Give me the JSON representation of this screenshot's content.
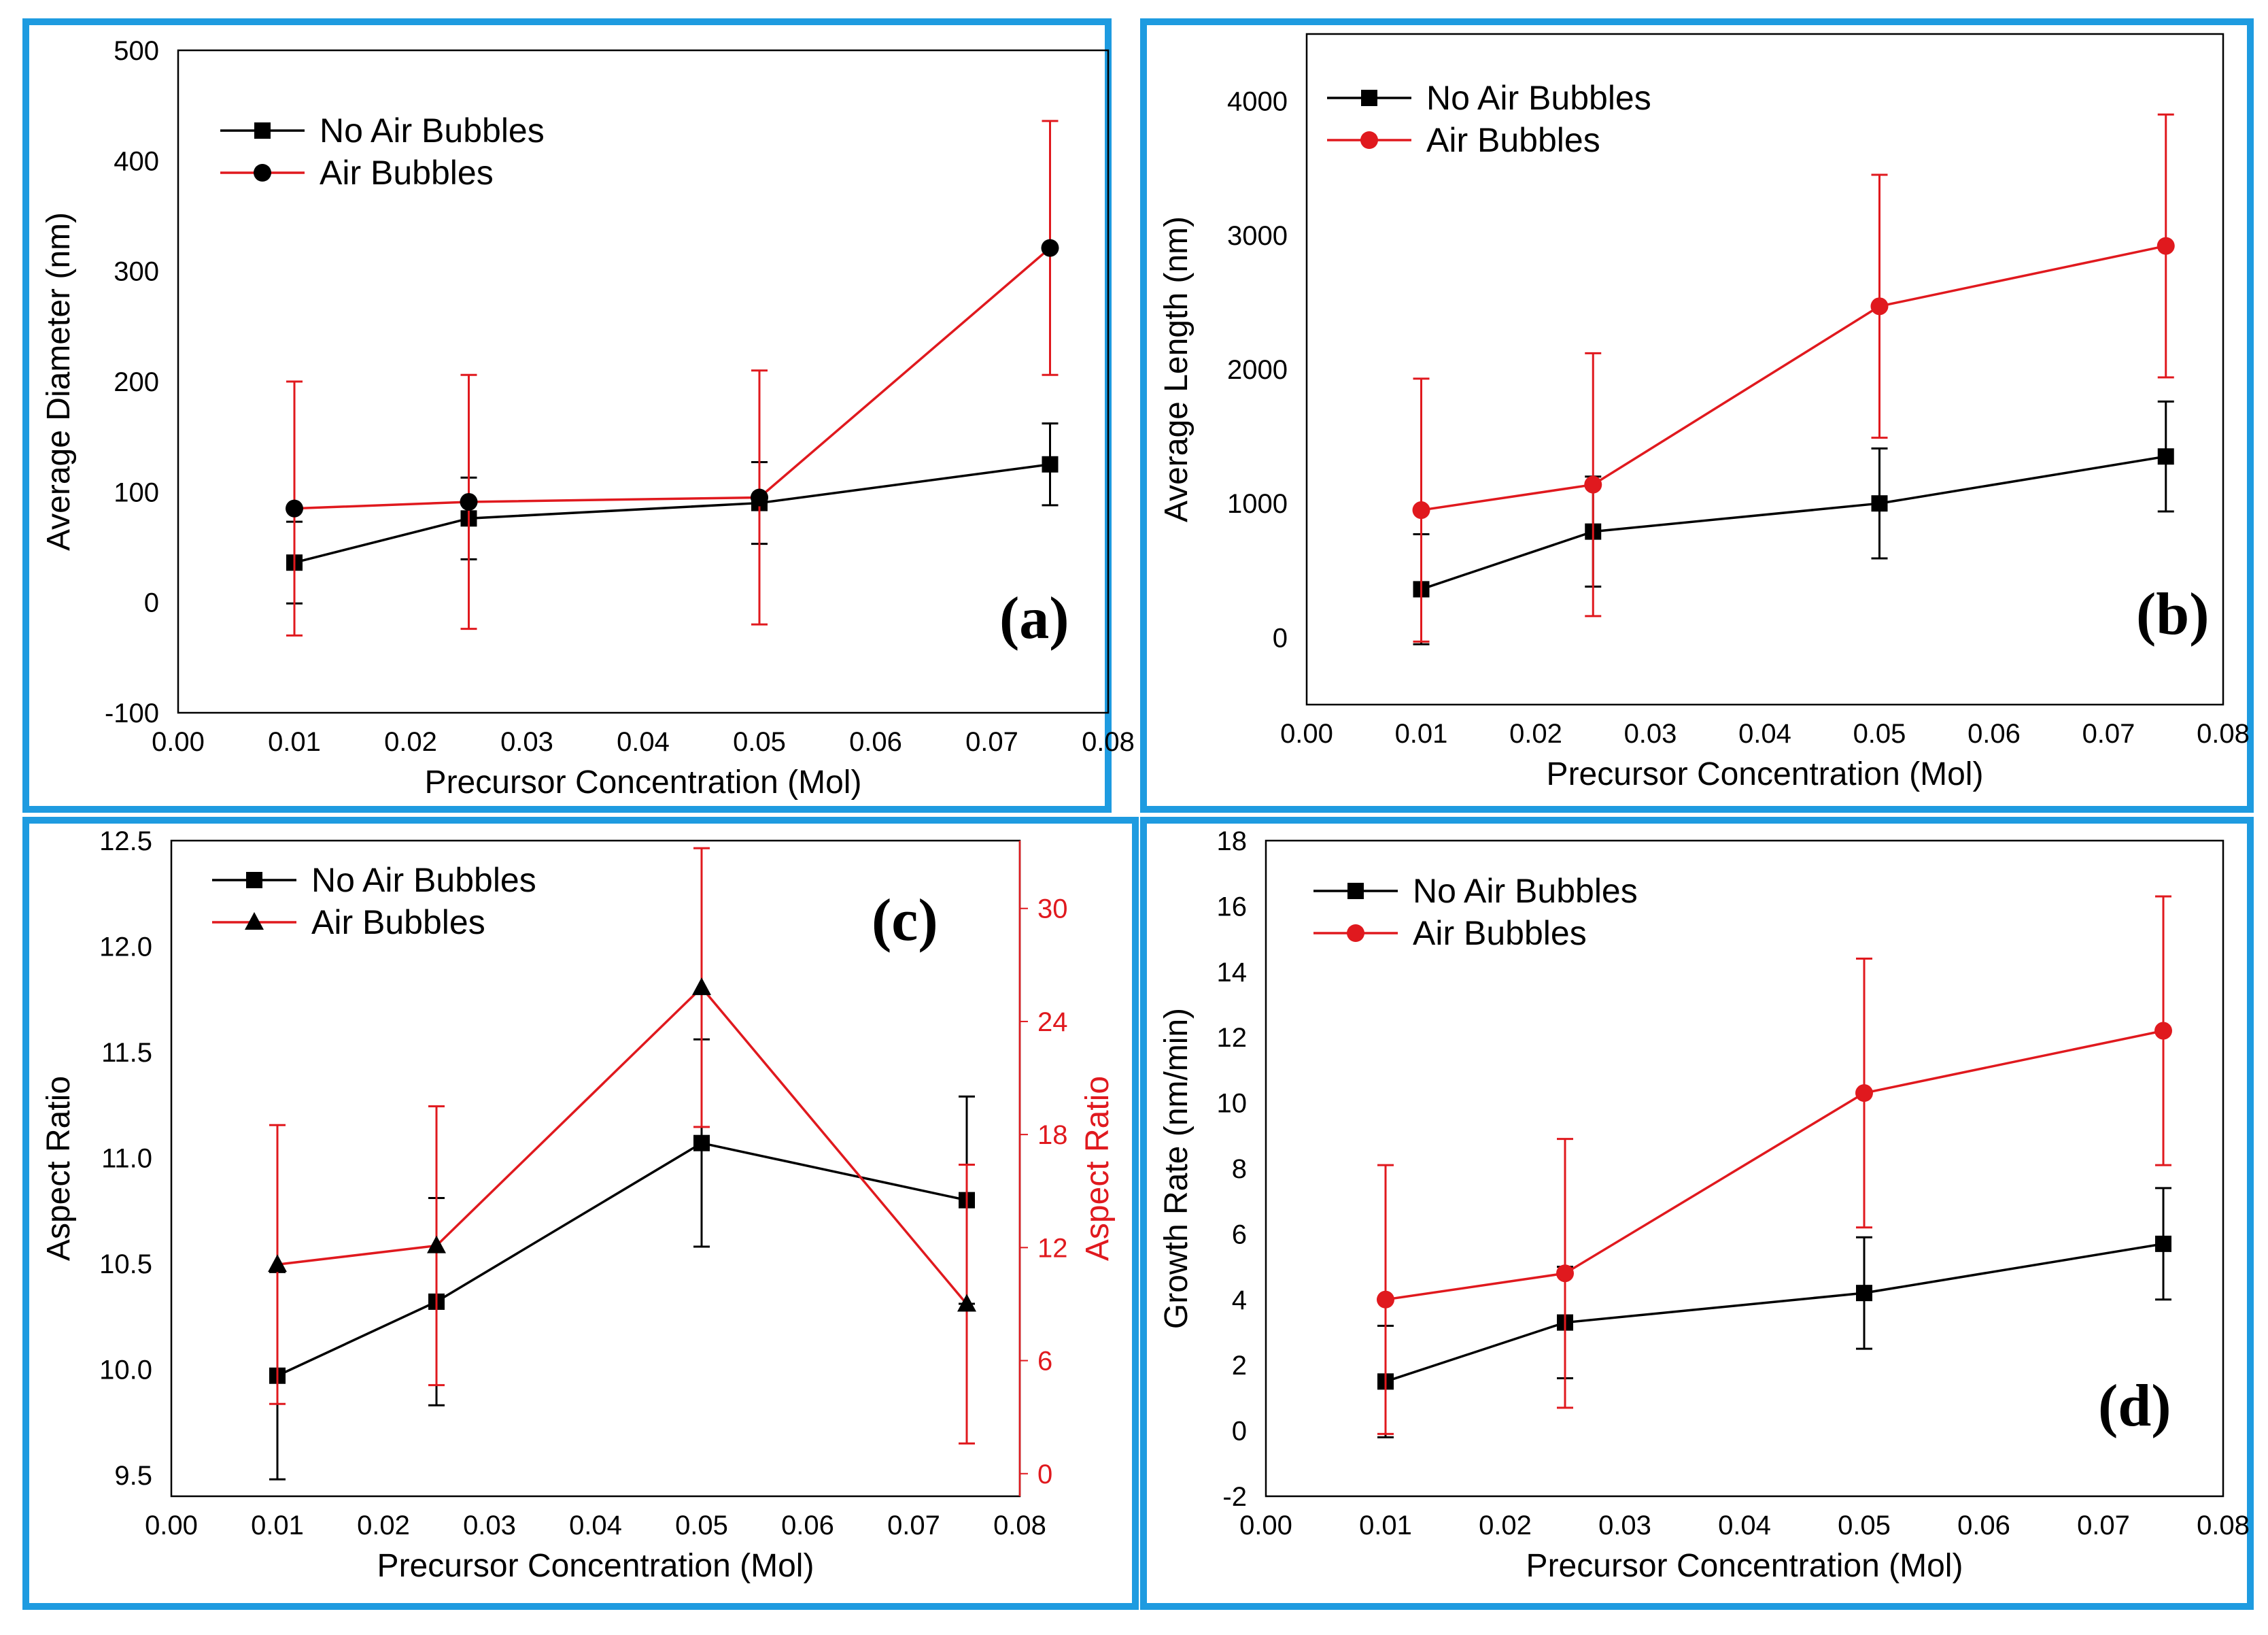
{
  "figure": {
    "frame_color": "#1e9be0"
  },
  "chart_data": [
    {
      "id": "a",
      "type": "line",
      "panel_label": "(a)",
      "xlabel": "Precursor Concentration (Mol)",
      "ylabel": "Average Diameter (nm)",
      "xlim": [
        0,
        0.08
      ],
      "ylim": [
        -100,
        500
      ],
      "x_ticks": [
        "0.00",
        "0.01",
        "0.02",
        "0.03",
        "0.04",
        "0.05",
        "0.06",
        "0.07",
        "0.08"
      ],
      "y_ticks": [
        "-100",
        "0",
        "100",
        "200",
        "300",
        "400",
        "500"
      ],
      "legend_position": "top-left",
      "x": [
        0.01,
        0.025,
        0.05,
        0.075
      ],
      "series": [
        {
          "name": "No Air Bubbles",
          "color": "#000000",
          "marker": "square",
          "axis": "left",
          "values": [
            36,
            76,
            90,
            125
          ],
          "errors": [
            37,
            37,
            37,
            37
          ]
        },
        {
          "name": "Air Bubbles",
          "color": "#e0191e",
          "marker": "circle",
          "marker_color": "#000000",
          "axis": "left",
          "values": [
            85,
            91,
            95,
            321
          ],
          "errors": [
            115,
            115,
            115,
            115
          ]
        }
      ]
    },
    {
      "id": "b",
      "type": "line",
      "panel_label": "(b)",
      "xlabel": "Precursor Concentration (Mol)",
      "ylabel": "Average Length (nm)",
      "xlim": [
        0,
        0.08
      ],
      "ylim": [
        -500,
        4500
      ],
      "x_ticks": [
        "0.00",
        "0.01",
        "0.02",
        "0.03",
        "0.04",
        "0.05",
        "0.06",
        "0.07",
        "0.08"
      ],
      "y_ticks": [
        "0",
        "1000",
        "2000",
        "3000",
        "4000"
      ],
      "legend_position": "top-left",
      "x": [
        0.01,
        0.025,
        0.05,
        0.075
      ],
      "series": [
        {
          "name": "No Air Bubbles",
          "color": "#000000",
          "marker": "square",
          "axis": "left",
          "values": [
            360,
            790,
            1000,
            1350
          ],
          "errors": [
            410,
            410,
            410,
            410
          ]
        },
        {
          "name": "Air Bubbles",
          "color": "#e0191e",
          "marker": "circle",
          "axis": "left",
          "values": [
            950,
            1140,
            2470,
            2920
          ],
          "errors": [
            980,
            980,
            980,
            980
          ]
        }
      ]
    },
    {
      "id": "c",
      "type": "line",
      "panel_label": "(c)",
      "xlabel": "Precursor Concentration (Mol)",
      "ylabel": "Aspect Ratio",
      "ylabel_right": "Aspect Ratio",
      "xlim": [
        0,
        0.08
      ],
      "ylim": [
        9.4,
        12.5
      ],
      "ylim_right": [
        -1.2,
        33.6
      ],
      "x_ticks": [
        "0.00",
        "0.01",
        "0.02",
        "0.03",
        "0.04",
        "0.05",
        "0.06",
        "0.07",
        "0.08"
      ],
      "y_ticks": [
        "9.5",
        "10.0",
        "10.5",
        "11.0",
        "11.5",
        "12.0",
        "12.5"
      ],
      "y_ticks_right": [
        "0",
        "6",
        "12",
        "18",
        "24",
        "30"
      ],
      "legend_position": "top-left",
      "x": [
        0.01,
        0.025,
        0.05,
        0.075
      ],
      "series": [
        {
          "name": "No Air Bubbles",
          "color": "#000000",
          "marker": "square",
          "axis": "left",
          "values": [
            9.97,
            10.32,
            11.07,
            10.8
          ],
          "errors": [
            0.49,
            0.49,
            0.49,
            0.49
          ]
        },
        {
          "name": "Air Bubbles",
          "color": "#e0191e",
          "marker": "triangle",
          "marker_color": "#000000",
          "axis": "right",
          "values": [
            11.1,
            12.1,
            25.8,
            9
          ],
          "errors": [
            7.4,
            7.4,
            7.4,
            7.4
          ]
        }
      ]
    },
    {
      "id": "d",
      "type": "line",
      "panel_label": "(d)",
      "xlabel": "Precursor Concentration (Mol)",
      "ylabel": "Growth Rate (nm/min)",
      "xlim": [
        0,
        0.08
      ],
      "ylim": [
        -2,
        18
      ],
      "x_ticks": [
        "0.00",
        "0.01",
        "0.02",
        "0.03",
        "0.04",
        "0.05",
        "0.06",
        "0.07",
        "0.08"
      ],
      "y_ticks": [
        "-2",
        "0",
        "2",
        "4",
        "6",
        "8",
        "10",
        "12",
        "14",
        "16",
        "18"
      ],
      "legend_position": "top-left",
      "x": [
        0.01,
        0.025,
        0.05,
        0.075
      ],
      "series": [
        {
          "name": "No Air Bubbles",
          "color": "#000000",
          "marker": "square",
          "axis": "left",
          "values": [
            1.5,
            3.3,
            4.2,
            5.7
          ],
          "errors": [
            1.7,
            1.7,
            1.7,
            1.7
          ]
        },
        {
          "name": "Air Bubbles",
          "color": "#e0191e",
          "marker": "circle",
          "axis": "left",
          "values": [
            4,
            4.8,
            10.3,
            12.2
          ],
          "errors": [
            4.1,
            4.1,
            4.1,
            4.1
          ]
        }
      ]
    }
  ]
}
